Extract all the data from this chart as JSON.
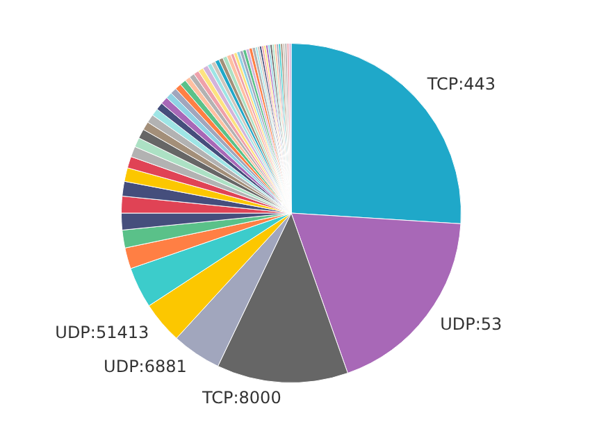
{
  "chart_data": {
    "type": "pie",
    "legend": false,
    "categories": [
      "TCP:443",
      "UDP:53",
      "TCP:8000",
      "UDP:6881",
      "UDP:51413",
      null,
      null,
      null,
      null,
      null,
      null,
      null,
      null,
      null,
      null,
      null,
      null,
      null,
      null,
      null,
      null,
      null,
      null,
      null,
      null,
      null,
      null,
      null,
      null,
      null,
      null,
      null,
      null,
      null,
      null,
      null,
      null,
      null,
      null,
      null,
      null,
      null,
      null,
      null,
      null,
      null,
      null,
      null,
      null,
      null,
      null,
      null,
      null,
      null,
      null,
      null,
      null,
      null,
      null,
      null,
      null
    ],
    "values": [
      26,
      18.6,
      12.5,
      4.7,
      4,
      3.9,
      2,
      1.7,
      1.6,
      1.6,
      1.4,
      1.3,
      1.1,
      1.0,
      0.9,
      0.9,
      0.8,
      0.8,
      0.7,
      0.7,
      0.7,
      0.6,
      0.6,
      0.6,
      0.6,
      0.5,
      0.5,
      0.5,
      0.5,
      0.5,
      0.4,
      0.4,
      0.4,
      0.4,
      0.4,
      0.4,
      0.3,
      0.3,
      0.3,
      0.3,
      0.3,
      0.3,
      0.3,
      0.3,
      0.2,
      0.2,
      0.2,
      0.2,
      0.2,
      0.2,
      0.2,
      0.2,
      0.2,
      0.2,
      0.2,
      0.2,
      0.2,
      0.2,
      0.2,
      0.2,
      0.2
    ],
    "colors": [
      "#1fa8c9",
      "#a868b7",
      "#666666",
      "#a1a6bd",
      "#fcc700",
      "#3ccccb",
      "#ff7f44",
      "#5ac189",
      "#454e7c",
      "#e04355",
      "#454e7c",
      "#fcc700",
      "#e04355",
      "#b2b2b2",
      "#ace1c4",
      "#666666",
      "#a38f79",
      "#b2b2b2",
      "#9ee5e5",
      "#454e7c",
      "#a868b7",
      "#8fd3e4",
      "#a1a6bd",
      "#ff7f44",
      "#5ac189",
      "#fec0a1",
      "#b2b2b2",
      "#efa1aa",
      "#fde380",
      "#d3b3da",
      "#9ee5e5",
      "#d1c6bc",
      "#1fa8c9",
      "#a38f79",
      "#ace1c4",
      "#fec0a1",
      "#efa1aa",
      "#fde380",
      "#8fd3e4",
      "#a1a6bd",
      "#5ac189",
      "#d3b3da",
      "#ff7f44",
      "#b2b2b2",
      "#9ee5e5",
      "#d1c6bc",
      "#454e7c",
      "#efa1aa",
      "#fde380",
      "#a868b7",
      "#8fd3e4",
      "#666666",
      "#ace1c4",
      "#fec0a1",
      "#a1a6bd",
      "#3ccccb",
      "#a38f79",
      "#d1c6bc",
      "#b2b2b2",
      "#efa1aa",
      "#d3b3da"
    ]
  }
}
